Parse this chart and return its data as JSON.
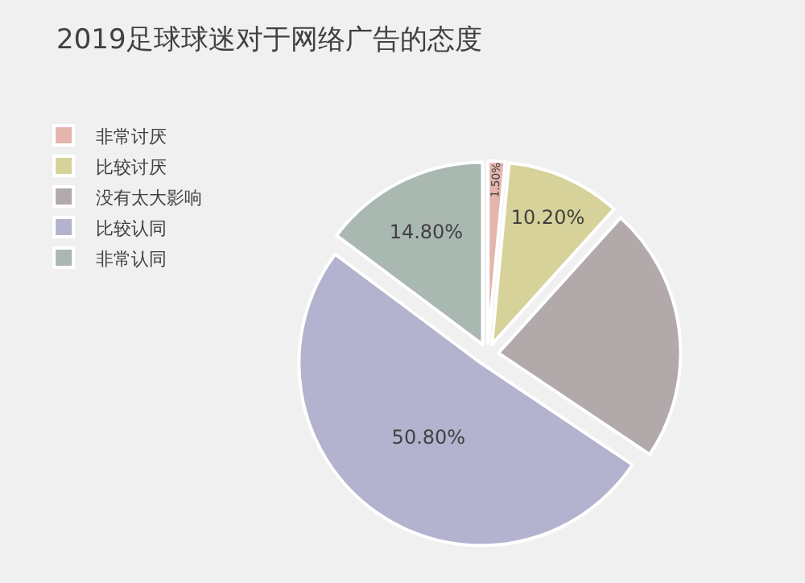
{
  "chart_data": {
    "type": "pie",
    "title": "2019足球球迷对于网络广告的态度",
    "categories": [
      "非常讨厌",
      "比较讨厌",
      "没有太大影响",
      "比较认同",
      "非常认同"
    ],
    "values": [
      1.5,
      10.2,
      22.7,
      50.8,
      14.8
    ],
    "value_labels": [
      "1.50%",
      "10.20%",
      null,
      "50.80%",
      "14.80%"
    ],
    "colors": [
      "#e3b5ac",
      "#d6d29a",
      "#b2a9aa",
      "#b3b3cf",
      "#a9b8b0"
    ],
    "legend": "left"
  }
}
